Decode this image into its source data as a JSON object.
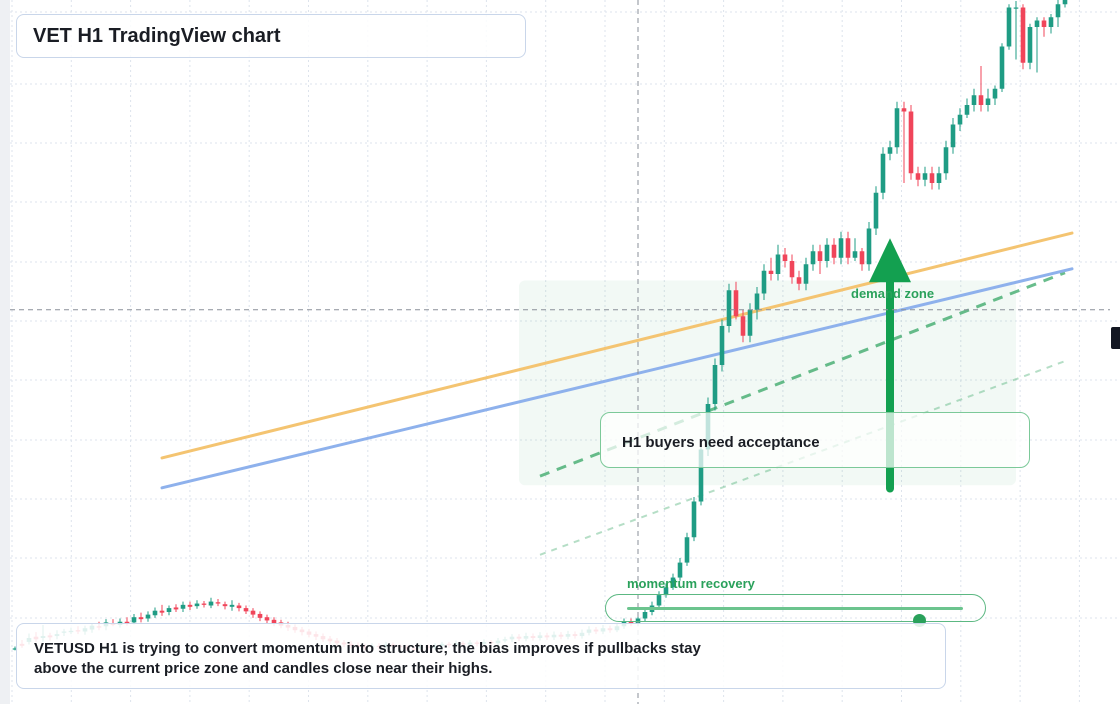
{
  "header": {
    "title": "VET H1 TradingView chart"
  },
  "summary": {
    "text": "VETUSD H1 is trying to convert momentum into structure; the bias improves if pullbacks stay above the current price zone and candles close near their highs."
  },
  "annotations": {
    "note": "H1 buyers need acceptance",
    "momentum_label": "momentum recovery",
    "demand_label": "demand zone",
    "momentum_level": 0.87
  },
  "colors": {
    "bull": "#1f9c84",
    "bear": "#f0455a",
    "ma_fast": "#f4c471",
    "ma_slow": "#8eb1ec",
    "zone": "#2aa15b",
    "grid": "#dde3ec"
  },
  "chart_data": {
    "type": "candlestick",
    "title": "VET H1 TradingView chart",
    "symbol": "VETUSD",
    "timeframe": "H1",
    "ylim": [
      0,
      100
    ],
    "grid": true,
    "candles": [
      [
        0,
        0.3,
        0.4,
        0.7,
        0.1
      ],
      [
        1,
        1.1,
        0.8,
        1.7,
        0.5
      ],
      [
        2,
        1.4,
        2.0,
        2.7,
        1.0
      ],
      [
        3,
        2.2,
        1.8,
        2.9,
        1.4
      ],
      [
        4,
        2.0,
        2.3,
        4.0,
        1.4
      ],
      [
        5,
        2.4,
        2.1,
        2.8,
        1.6
      ],
      [
        6,
        2.3,
        2.6,
        3.2,
        1.8
      ],
      [
        7,
        2.8,
        3.0,
        3.4,
        2.3
      ],
      [
        8,
        2.9,
        3.1,
        3.6,
        2.6
      ],
      [
        9,
        3.2,
        3.0,
        3.8,
        2.6
      ],
      [
        10,
        3.0,
        3.5,
        3.9,
        2.5
      ],
      [
        11,
        3.3,
        3.9,
        4.2,
        2.8
      ],
      [
        12,
        3.8,
        3.6,
        4.5,
        3.2
      ],
      [
        13,
        3.8,
        4.4,
        4.9,
        3.2
      ],
      [
        14,
        4.2,
        4.1,
        4.9,
        3.8
      ],
      [
        15,
        4.0,
        4.5,
        5.0,
        3.6
      ],
      [
        16,
        4.5,
        4.3,
        5.2,
        3.9
      ],
      [
        17,
        4.4,
        5.2,
        5.7,
        4.1
      ],
      [
        18,
        5.2,
        4.9,
        5.9,
        4.4
      ],
      [
        19,
        5.0,
        5.6,
        6.1,
        4.5
      ],
      [
        20,
        5.5,
        6.2,
        6.7,
        5.1
      ],
      [
        21,
        6.2,
        5.9,
        7.1,
        5.4
      ],
      [
        22,
        6.0,
        6.6,
        7.0,
        5.5
      ],
      [
        23,
        6.7,
        6.4,
        7.2,
        6.0
      ],
      [
        24,
        6.5,
        7.1,
        7.6,
        6.0
      ],
      [
        25,
        7.1,
        6.8,
        7.6,
        6.3
      ],
      [
        26,
        6.9,
        7.3,
        7.8,
        6.5
      ],
      [
        27,
        7.3,
        7.1,
        7.7,
        6.7
      ],
      [
        28,
        7.0,
        7.6,
        8.2,
        6.6
      ],
      [
        29,
        7.5,
        7.3,
        8.0,
        6.9
      ],
      [
        30,
        7.2,
        6.9,
        7.6,
        6.4
      ],
      [
        31,
        6.8,
        7.1,
        7.8,
        6.2
      ],
      [
        32,
        7.0,
        6.6,
        7.4,
        6.1
      ],
      [
        33,
        6.6,
        6.1,
        7.0,
        5.7
      ],
      [
        34,
        6.2,
        5.6,
        6.6,
        5.1
      ],
      [
        35,
        5.7,
        5.1,
        6.1,
        4.6
      ],
      [
        36,
        5.2,
        4.7,
        5.6,
        4.3
      ],
      [
        37,
        4.8,
        4.3,
        5.2,
        3.8
      ],
      [
        38,
        4.4,
        3.9,
        4.8,
        3.5
      ],
      [
        39,
        4.0,
        3.6,
        4.5,
        3.1
      ],
      [
        40,
        3.7,
        3.2,
        4.1,
        2.8
      ],
      [
        41,
        3.3,
        2.9,
        3.7,
        2.4
      ],
      [
        42,
        3.0,
        2.5,
        3.4,
        2.1
      ],
      [
        43,
        2.6,
        2.2,
        3.0,
        1.7
      ],
      [
        44,
        2.3,
        1.8,
        2.7,
        1.4
      ],
      [
        45,
        1.9,
        1.5,
        2.3,
        1.0
      ],
      [
        46,
        1.6,
        1.2,
        2.0,
        0.8
      ],
      [
        47,
        1.3,
        1.0,
        1.7,
        0.6
      ],
      [
        48,
        1.1,
        0.8,
        1.5,
        0.4
      ],
      [
        49,
        0.9,
        0.6,
        1.3,
        0.2
      ],
      [
        50,
        0.7,
        0.5,
        1.1,
        0.1
      ],
      [
        51,
        0.6,
        0.8,
        1.2,
        0.2
      ],
      [
        52,
        0.8,
        0.6,
        1.2,
        0.2
      ],
      [
        53,
        0.7,
        1.0,
        1.4,
        0.3
      ],
      [
        54,
        1.0,
        0.7,
        1.3,
        0.3
      ],
      [
        55,
        0.8,
        0.6,
        1.1,
        0.2
      ],
      [
        56,
        0.6,
        0.4,
        0.9,
        0.0
      ],
      [
        57,
        0.4,
        0.3,
        0.8,
        0.0
      ],
      [
        58,
        0.4,
        0.7,
        1.1,
        0.1
      ],
      [
        59,
        0.7,
        0.5,
        1.0,
        0.1
      ],
      [
        60,
        0.5,
        0.8,
        1.2,
        0.2
      ],
      [
        61,
        0.8,
        1.1,
        1.4,
        0.5
      ],
      [
        62,
        1.1,
        0.9,
        1.4,
        0.5
      ],
      [
        63,
        0.9,
        1.2,
        1.6,
        0.5
      ],
      [
        64,
        1.2,
        1.0,
        1.5,
        0.6
      ],
      [
        65,
        1.0,
        1.3,
        1.7,
        0.6
      ],
      [
        66,
        1.3,
        1.1,
        1.6,
        0.7
      ],
      [
        67,
        1.1,
        1.4,
        1.8,
        0.7
      ],
      [
        68,
        1.4,
        1.2,
        1.7,
        0.8
      ],
      [
        69,
        1.2,
        1.6,
        2.0,
        0.8
      ],
      [
        70,
        1.6,
        1.8,
        2.2,
        1.3
      ],
      [
        71,
        1.8,
        2.2,
        2.6,
        1.4
      ],
      [
        72,
        2.2,
        1.9,
        2.6,
        1.5
      ],
      [
        73,
        1.9,
        2.3,
        2.8,
        1.5
      ],
      [
        74,
        2.3,
        2.0,
        2.7,
        1.6
      ],
      [
        75,
        2.0,
        2.4,
        2.9,
        1.6
      ],
      [
        76,
        2.4,
        2.1,
        2.8,
        1.7
      ],
      [
        77,
        2.1,
        2.5,
        3.0,
        1.7
      ],
      [
        78,
        2.5,
        2.2,
        2.9,
        1.8
      ],
      [
        79,
        2.2,
        2.6,
        3.1,
        1.8
      ],
      [
        80,
        2.6,
        2.3,
        3.0,
        1.9
      ],
      [
        81,
        2.3,
        2.8,
        3.3,
        1.9
      ],
      [
        82,
        2.8,
        3.3,
        3.8,
        2.4
      ],
      [
        83,
        3.3,
        3.0,
        3.7,
        2.6
      ],
      [
        84,
        3.0,
        3.5,
        4.0,
        2.6
      ],
      [
        85,
        3.5,
        3.2,
        3.9,
        2.8
      ],
      [
        86,
        3.2,
        3.8,
        4.3,
        2.9
      ],
      [
        87,
        3.8,
        4.6,
        5.0,
        3.4
      ],
      [
        88,
        4.6,
        4.2,
        5.0,
        3.8
      ],
      [
        89,
        4.2,
        5.0,
        5.4,
        3.8
      ],
      [
        90,
        5.0,
        6.0,
        6.6,
        4.6
      ],
      [
        91,
        6.0,
        7.0,
        7.6,
        5.5
      ],
      [
        92,
        7.0,
        8.6,
        9.2,
        6.6
      ],
      [
        93,
        8.6,
        9.8,
        10.4,
        8.2
      ],
      [
        94,
        9.8,
        11.3,
        11.9,
        9.4
      ],
      [
        95,
        11.3,
        13.6,
        14.3,
        10.8
      ],
      [
        96,
        13.6,
        17.5,
        18.2,
        13.1
      ],
      [
        97,
        17.5,
        23.0,
        23.7,
        16.9
      ],
      [
        98,
        23.0,
        31.0,
        32.0,
        22.4
      ],
      [
        99,
        31.0,
        38.0,
        39.0,
        30.0
      ],
      [
        100,
        38.0,
        44.0,
        45.0,
        37.0
      ],
      [
        101,
        44.0,
        50.0,
        51.0,
        43.0
      ],
      [
        102,
        50.0,
        55.5,
        56.5,
        49.0
      ],
      [
        103,
        55.5,
        51.5,
        56.8,
        51.0
      ],
      [
        104,
        51.5,
        48.5,
        52.5,
        47.5
      ],
      [
        105,
        48.5,
        52.5,
        53.5,
        47.5
      ],
      [
        106,
        52.5,
        55.0,
        56.0,
        51.0
      ],
      [
        107,
        55.0,
        58.5,
        59.5,
        54.0
      ],
      [
        108,
        58.5,
        58.0,
        60.5,
        57.0
      ],
      [
        109,
        58.0,
        61.0,
        62.5,
        57.0
      ],
      [
        110,
        61.0,
        60.0,
        62.0,
        59.0
      ],
      [
        111,
        60.0,
        57.5,
        61.0,
        56.5
      ],
      [
        112,
        57.5,
        56.5,
        58.5,
        55.5
      ],
      [
        113,
        56.5,
        59.5,
        60.5,
        55.5
      ],
      [
        114,
        59.5,
        61.5,
        62.5,
        58.5
      ],
      [
        115,
        61.5,
        60.0,
        62.5,
        58.0
      ],
      [
        116,
        60.0,
        62.5,
        63.5,
        59.0
      ],
      [
        117,
        62.5,
        60.5,
        63.5,
        59.5
      ],
      [
        118,
        60.5,
        63.5,
        64.5,
        59.5
      ],
      [
        119,
        63.5,
        60.5,
        64.5,
        59.5
      ],
      [
        120,
        60.5,
        61.5,
        63.5,
        60.0
      ],
      [
        121,
        61.5,
        59.5,
        62.0,
        58.5
      ],
      [
        122,
        59.5,
        65.0,
        66.0,
        58.5
      ],
      [
        123,
        65.0,
        70.5,
        71.5,
        64.0
      ],
      [
        124,
        70.5,
        76.5,
        77.5,
        69.5
      ],
      [
        125,
        76.5,
        77.5,
        78.5,
        75.5
      ],
      [
        126,
        77.5,
        83.5,
        84.5,
        76.5
      ],
      [
        127,
        83.5,
        83.0,
        84.5,
        72.0
      ],
      [
        128,
        83.0,
        73.5,
        84.0,
        72.5
      ],
      [
        129,
        73.5,
        72.5,
        74.5,
        71.5
      ],
      [
        130,
        72.5,
        73.5,
        74.5,
        71.5
      ],
      [
        131,
        73.5,
        72.0,
        74.5,
        71.0
      ],
      [
        132,
        72.0,
        73.5,
        74.5,
        71.0
      ],
      [
        133,
        73.5,
        77.5,
        78.5,
        72.5
      ],
      [
        134,
        77.5,
        81.0,
        82.0,
        76.5
      ],
      [
        135,
        81.0,
        82.5,
        83.5,
        80.0
      ],
      [
        136,
        82.5,
        84.0,
        85.0,
        82.0
      ],
      [
        137,
        84.0,
        85.5,
        86.5,
        83.0
      ],
      [
        138,
        85.5,
        84.0,
        90.0,
        83.0
      ],
      [
        139,
        84.0,
        85.0,
        86.5,
        83.0
      ],
      [
        140,
        85.0,
        86.5,
        87.0,
        84.0
      ],
      [
        141,
        86.5,
        93.0,
        93.5,
        86.0
      ],
      [
        142,
        93.0,
        99.0,
        99.5,
        92.5
      ],
      [
        143,
        99.0,
        99.0,
        100.0,
        91.0
      ],
      [
        144,
        99.0,
        90.5,
        99.5,
        89.5
      ],
      [
        145,
        90.5,
        96.0,
        96.5,
        89.5
      ],
      [
        146,
        96.0,
        97.0,
        97.5,
        89.0
      ],
      [
        147,
        97.0,
        96.0,
        97.5,
        94.5
      ],
      [
        148,
        96.0,
        97.5,
        98.0,
        95.0
      ],
      [
        149,
        97.5,
        99.5,
        100.5,
        96.0
      ],
      [
        150,
        99.5,
        101.0,
        101.5,
        99.0
      ],
      [
        151,
        101.0,
        103.0,
        103.5,
        100.5
      ]
    ],
    "overlays": {
      "fast_ma": [
        [
          21,
          29.7
        ],
        [
          151,
          64.3
        ]
      ],
      "slow_ma": [
        [
          21,
          25.1
        ],
        [
          151,
          58.8
        ]
      ],
      "channel_upper": [
        [
          75,
          26.9
        ],
        [
          150,
          58.2
        ]
      ],
      "channel_lower": [
        [
          75,
          14.8
        ],
        [
          150,
          44.6
        ]
      ]
    },
    "annotations": [
      {
        "type": "arrow",
        "x": 125,
        "from": 25.0,
        "to": 63.5
      },
      {
        "type": "hline",
        "y": 52.5
      },
      {
        "type": "vline",
        "x": 89
      },
      {
        "type": "zone",
        "x": [
          72,
          143
        ],
        "y": [
          25.5,
          57.0
        ]
      }
    ]
  }
}
